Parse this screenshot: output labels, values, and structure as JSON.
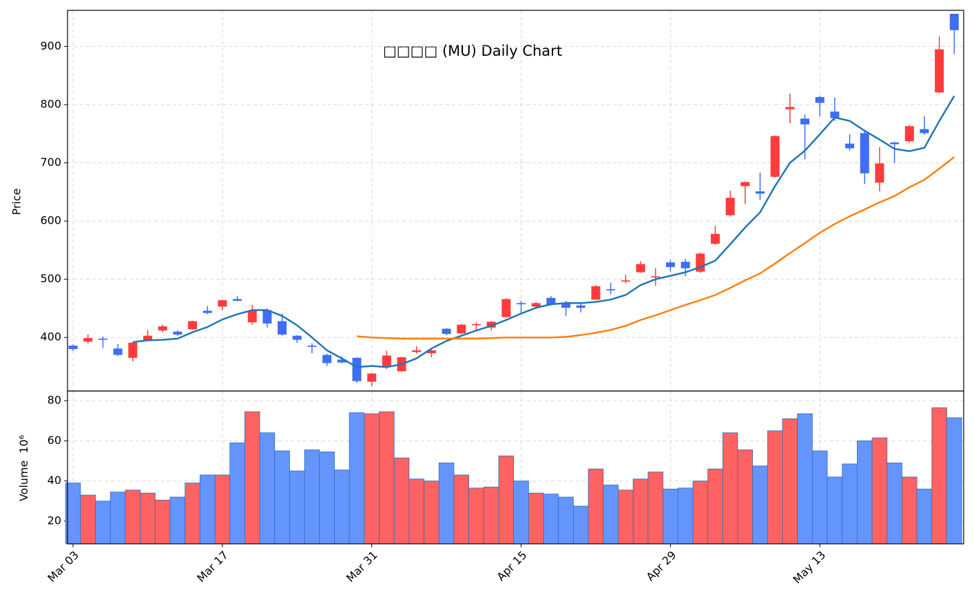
{
  "chart_data": {
    "type": "candlestick",
    "title": "□□□□ (MU) Daily Chart",
    "ylabel": "Price",
    "categories": [
      "Mar 03",
      null,
      null,
      null,
      null,
      null,
      null,
      null,
      null,
      null,
      "Mar 17",
      null,
      null,
      null,
      null,
      null,
      null,
      null,
      null,
      null,
      "Mar 31",
      null,
      null,
      null,
      null,
      null,
      null,
      null,
      null,
      null,
      "Apr 15",
      null,
      null,
      null,
      null,
      null,
      null,
      null,
      null,
      null,
      "Apr 29",
      null,
      null,
      null,
      null,
      null,
      null,
      null,
      null,
      null,
      "May 13",
      null,
      null,
      null,
      null,
      null,
      null,
      null,
      null,
      null
    ],
    "open": [
      386,
      393,
      398,
      381,
      365,
      395,
      412,
      410,
      414,
      446,
      453,
      466,
      426,
      447,
      428,
      403,
      386,
      370,
      362,
      365,
      324,
      349,
      342,
      375,
      373,
      415,
      407,
      421,
      417,
      435,
      459,
      453,
      468,
      460,
      455,
      465,
      483,
      496,
      512,
      503,
      529,
      530,
      513,
      561,
      610,
      660,
      651,
      676,
      792,
      776,
      813,
      788,
      733,
      751,
      666,
      735,
      737,
      758,
      821,
      956
    ],
    "high": [
      388,
      405,
      402,
      389,
      392,
      413,
      422,
      412,
      429,
      454,
      465,
      471,
      456,
      450,
      441,
      404,
      390,
      372,
      367,
      366,
      339,
      377,
      367,
      385,
      379,
      416,
      423,
      426,
      428,
      467,
      463,
      461,
      471,
      463,
      458,
      490,
      494,
      508,
      531,
      519,
      533,
      535,
      546,
      592,
      652,
      668,
      683,
      747,
      819,
      783,
      815,
      812,
      749,
      757,
      727,
      736,
      765,
      780,
      917,
      956
    ],
    "low": [
      377,
      390,
      382,
      368,
      359,
      394,
      409,
      403,
      413,
      440,
      447,
      462,
      422,
      417,
      403,
      391,
      373,
      351,
      356,
      322,
      316,
      346,
      341,
      372,
      366,
      404,
      406,
      410,
      412,
      434,
      440,
      450,
      455,
      437,
      443,
      464,
      474,
      493,
      511,
      489,
      513,
      505,
      511,
      559,
      608,
      629,
      636,
      675,
      768,
      706,
      780,
      772,
      721,
      664,
      651,
      700,
      735,
      748,
      820,
      887
    ],
    "close": [
      380,
      399,
      396,
      370,
      391,
      403,
      419,
      405,
      428,
      442,
      464,
      463,
      447,
      424,
      405,
      396,
      384,
      356,
      357,
      325,
      338,
      369,
      366,
      378,
      378,
      406,
      422,
      423,
      427,
      466,
      457,
      459,
      457,
      451,
      451,
      488,
      481,
      498,
      526,
      505,
      521,
      519,
      544,
      578,
      640,
      667,
      647,
      746,
      796,
      766,
      803,
      777,
      725,
      682,
      699,
      732,
      763,
      751,
      895,
      928
    ],
    "up_color": "#ff3b3b",
    "down_color": "#3d6ff0",
    "ylim": [
      308,
      962
    ],
    "yticks": [
      400,
      500,
      600,
      700,
      800,
      900
    ],
    "grid": true,
    "moving_averages": [
      {
        "color": "#1f77b4",
        "values": [
          null,
          null,
          null,
          null,
          392,
          395,
          396,
          398,
          409,
          418,
          431,
          440,
          447,
          447,
          437,
          421,
          400,
          378,
          364,
          349,
          351,
          349,
          354,
          364,
          381,
          394,
          403,
          412,
          420,
          430,
          441,
          451,
          457,
          459,
          459,
          461,
          465,
          473,
          490,
          500,
          506,
          512,
          521,
          532,
          560,
          589,
          615,
          660,
          700,
          721,
          749,
          778,
          772,
          755,
          740,
          724,
          720,
          726,
          772,
          815
        ]
      },
      {
        "color": "#ff7f0e",
        "values": [
          null,
          null,
          null,
          null,
          null,
          null,
          null,
          null,
          null,
          null,
          null,
          null,
          null,
          null,
          null,
          null,
          null,
          null,
          null,
          402,
          400,
          399,
          398,
          398,
          398,
          398,
          398,
          398,
          399,
          400,
          400,
          400,
          400,
          401,
          404,
          408,
          413,
          420,
          430,
          438,
          447,
          456,
          464,
          473,
          485,
          498,
          510,
          527,
          545,
          562,
          580,
          595,
          608,
          620,
          632,
          643,
          658,
          671,
          690,
          710
        ]
      }
    ],
    "volume": {
      "ylabel": "Volume",
      "multiplier": "10⁶",
      "values": [
        39,
        33,
        30,
        34.5,
        35.5,
        34,
        30.5,
        32,
        39,
        43,
        43,
        59,
        74.5,
        64,
        55,
        45,
        55.5,
        54.5,
        45.5,
        74,
        73.5,
        74.5,
        51.5,
        41,
        40,
        49,
        43,
        36.5,
        37,
        52.5,
        40,
        34,
        33.5,
        32,
        27.5,
        46,
        38,
        35.5,
        41,
        44.5,
        36,
        36.5,
        40,
        46,
        64,
        55.5,
        47.5,
        65,
        71,
        73.5,
        55,
        42,
        48.5,
        60,
        61.5,
        49,
        42,
        36,
        76.5,
        71.5
      ],
      "up_color": "#ff6262",
      "down_color": "#6495fd",
      "edge_color": "#2f6fb8",
      "ylim": [
        8.7,
        84.8
      ],
      "yticks": [
        20,
        40,
        60,
        80
      ]
    }
  }
}
